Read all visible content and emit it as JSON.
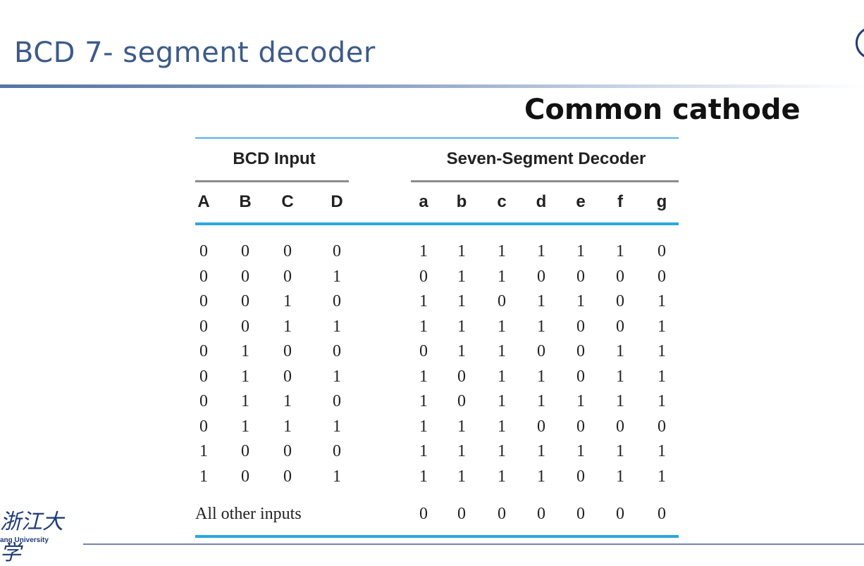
{
  "slide": {
    "title": "BCD 7- segment decoder",
    "subtitle": "Common cathode"
  },
  "table": {
    "input_group": "BCD Input",
    "output_group": "Seven-Segment Decoder",
    "input_columns": [
      "A",
      "B",
      "C",
      "D"
    ],
    "output_columns": [
      "a",
      "b",
      "c",
      "d",
      "e",
      "f",
      "g"
    ],
    "rows": [
      {
        "inputs": [
          "0",
          "0",
          "0",
          "0"
        ],
        "outputs": [
          "1",
          "1",
          "1",
          "1",
          "1",
          "1",
          "0"
        ]
      },
      {
        "inputs": [
          "0",
          "0",
          "0",
          "1"
        ],
        "outputs": [
          "0",
          "1",
          "1",
          "0",
          "0",
          "0",
          "0"
        ]
      },
      {
        "inputs": [
          "0",
          "0",
          "1",
          "0"
        ],
        "outputs": [
          "1",
          "1",
          "0",
          "1",
          "1",
          "0",
          "1"
        ]
      },
      {
        "inputs": [
          "0",
          "0",
          "1",
          "1"
        ],
        "outputs": [
          "1",
          "1",
          "1",
          "1",
          "0",
          "0",
          "1"
        ]
      },
      {
        "inputs": [
          "0",
          "1",
          "0",
          "0"
        ],
        "outputs": [
          "0",
          "1",
          "1",
          "0",
          "0",
          "1",
          "1"
        ]
      },
      {
        "inputs": [
          "0",
          "1",
          "0",
          "1"
        ],
        "outputs": [
          "1",
          "0",
          "1",
          "1",
          "0",
          "1",
          "1"
        ]
      },
      {
        "inputs": [
          "0",
          "1",
          "1",
          "0"
        ],
        "outputs": [
          "1",
          "0",
          "1",
          "1",
          "1",
          "1",
          "1"
        ]
      },
      {
        "inputs": [
          "0",
          "1",
          "1",
          "1"
        ],
        "outputs": [
          "1",
          "1",
          "1",
          "0",
          "0",
          "0",
          "0"
        ]
      },
      {
        "inputs": [
          "1",
          "0",
          "0",
          "0"
        ],
        "outputs": [
          "1",
          "1",
          "1",
          "1",
          "1",
          "1",
          "1"
        ]
      },
      {
        "inputs": [
          "1",
          "0",
          "0",
          "1"
        ],
        "outputs": [
          "1",
          "1",
          "1",
          "1",
          "0",
          "1",
          "1"
        ]
      }
    ],
    "other_label": "All other inputs",
    "other_outputs": [
      "0",
      "0",
      "0",
      "0",
      "0",
      "0",
      "0"
    ]
  },
  "footer": {
    "logo_script": "浙江大学",
    "logo_name": "ang University"
  }
}
